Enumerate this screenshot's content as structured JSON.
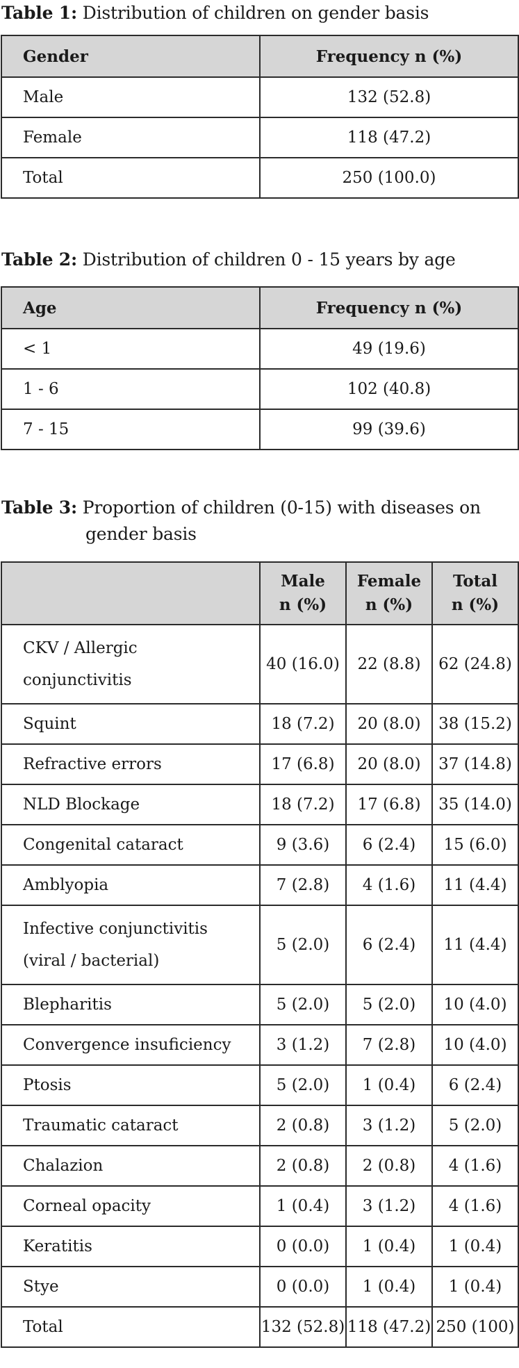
{
  "table1": {
    "caption_label": "Table 1:",
    "caption_text": "Distribution of children on gender basis",
    "headers": [
      "Gender",
      "Frequency n (%)"
    ],
    "rows": [
      [
        "Male",
        "132 (52.8)"
      ],
      [
        "Female",
        "118 (47.2)"
      ],
      [
        "Total",
        "250 (100.0)"
      ]
    ]
  },
  "table2": {
    "caption_label": "Table 2:",
    "caption_text": "Distribution of children 0 - 15 years by age",
    "headers": [
      "Age",
      "Frequency n (%)"
    ],
    "rows": [
      [
        "< 1",
        "49 (19.6)"
      ],
      [
        "1 - 6",
        "102 (40.8)"
      ],
      [
        "7 - 15",
        "99 (39.6)"
      ]
    ]
  },
  "table3": {
    "caption_label": "Table 3:",
    "caption_line1": "Proportion of children (0-15) with diseases on",
    "caption_line2": "gender basis",
    "headers": {
      "male_1": "Male",
      "male_2": "n (%)",
      "female_1": "Female",
      "female_2": "n (%)",
      "total_1": "Total",
      "total_2": "n (%)"
    },
    "rows": [
      {
        "line1": "CKV / Allergic",
        "line2": "conjunctivitis",
        "male": "40 (16.0)",
        "female": "22 (8.8)",
        "total": "62 (24.8)"
      },
      {
        "line1": "Squint",
        "male": "18 (7.2)",
        "female": "20 (8.0)",
        "total": "38 (15.2)"
      },
      {
        "line1": "Refractive errors",
        "male": "17 (6.8)",
        "female": "20 (8.0)",
        "total": "37 (14.8)"
      },
      {
        "line1": "NLD Blockage",
        "male": "18 (7.2)",
        "female": "17 (6.8)",
        "total": "35 (14.0)"
      },
      {
        "line1": "Congenital cataract",
        "male": "9 (3.6)",
        "female": "6 (2.4)",
        "total": "15 (6.0)"
      },
      {
        "line1": "Amblyopia",
        "male": "7 (2.8)",
        "female": "4 (1.6)",
        "total": "11 (4.4)"
      },
      {
        "line1": "Infective conjunctivitis",
        "line2": "(viral / bacterial)",
        "male": "5 (2.0)",
        "female": "6 (2.4)",
        "total": "11 (4.4)"
      },
      {
        "line1": "Blepharitis",
        "male": "5 (2.0)",
        "female": "5 (2.0)",
        "total": "10 (4.0)"
      },
      {
        "line1": "Convergence insuficiency",
        "male": "3 (1.2)",
        "female": "7 (2.8)",
        "total": "10 (4.0)"
      },
      {
        "line1": "Ptosis",
        "male": "5 (2.0)",
        "female": "1 (0.4)",
        "total": "6 (2.4)"
      },
      {
        "line1": "Traumatic cataract",
        "male": "2 (0.8)",
        "female": "3 (1.2)",
        "total": "5 (2.0)"
      },
      {
        "line1": "Chalazion",
        "male": "2 (0.8)",
        "female": "2 (0.8)",
        "total": "4 (1.6)"
      },
      {
        "line1": "Corneal opacity",
        "male": "1 (0.4)",
        "female": "3 (1.2)",
        "total": "4 (1.6)"
      },
      {
        "line1": "Keratitis",
        "male": "0 (0.0)",
        "female": "1 (0.4)",
        "total": "1 (0.4)"
      },
      {
        "line1": "Stye",
        "male": "0 (0.0)",
        "female": "1 (0.4)",
        "total": "1 (0.4)"
      },
      {
        "line1": "Total",
        "male": "132 (52.8)",
        "female": "118 (47.2)",
        "total": "250 (100)"
      }
    ]
  }
}
